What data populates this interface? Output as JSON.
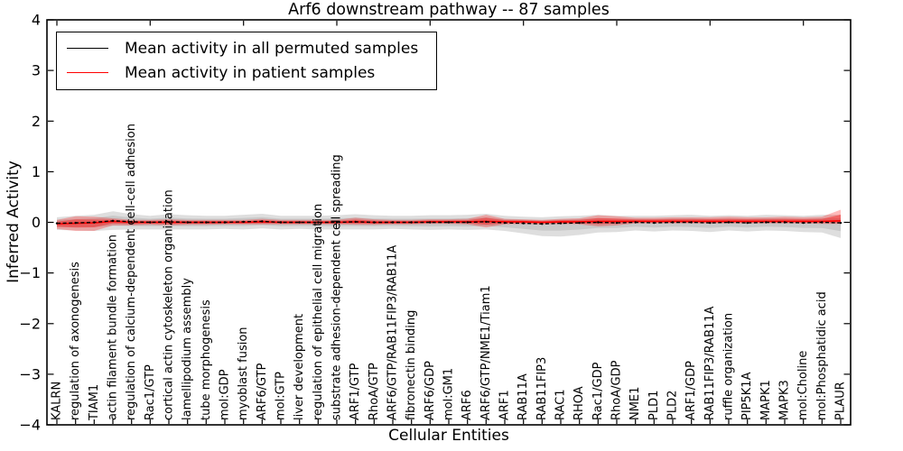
{
  "figure": {
    "title": "Arf6 downstream pathway -- 87 samples",
    "x_axis_label": "Cellular Entities",
    "y_axis_label": "Inferred Activity"
  },
  "legend": {
    "entries": [
      {
        "label": "Mean activity in all permuted samples",
        "color": "#000000"
      },
      {
        "label": "Mean activity in patient samples",
        "color": "#ff0000"
      }
    ]
  },
  "chart_data": {
    "type": "line",
    "title": "Arf6 downstream pathway -- 87 samples",
    "xlabel": "Cellular Entities",
    "ylabel": "Inferred Activity",
    "ylim": [
      -4,
      4
    ],
    "y_ticks": [
      "4",
      "3",
      "2",
      "1",
      "0",
      "−1",
      "−2",
      "−3",
      "−4"
    ],
    "y_tick_values": [
      4,
      3,
      2,
      1,
      0,
      -1,
      -2,
      -3,
      -4
    ],
    "grid": false,
    "legend_position": "upper-left",
    "categories": [
      "KALRN",
      "regulation of axonogenesis",
      "TIAM1",
      "actin filament bundle formation",
      "regulation of calcium-dependent cell-cell adhesion",
      "Rac1/GTP",
      "cortical actin cytoskeleton organization",
      "lamellipodium assembly",
      "tube morphogenesis",
      "mol:GDP",
      "myoblast fusion",
      "ARF6/GTP",
      "mol:GTP",
      "liver development",
      "regulation of epithelial cell migration",
      "substrate adhesion-dependent cell spreading",
      "ARF1/GTP",
      "RhoA/GTP",
      "ARF6/GTP/RAB11FIP3/RAB11A",
      "fibronectin binding",
      "ARF6/GDP",
      "mol:GM1",
      "ARF6",
      "ARF6/GTP/NME1/Tiam1",
      "ARF1",
      "RAB11A",
      "RAB11FIP3",
      "RAC1",
      "RHOA",
      "Rac1/GDP",
      "RhoA/GDP",
      "NME1",
      "PLD1",
      "PLD2",
      "ARF1/GDP",
      "RAB11FIP3/RAB11A",
      "ruffle organization",
      "PIP5K1A",
      "MAPK1",
      "MAPK3",
      "mol:Choline",
      "mol:Phosphatidic acid",
      "PLAUR"
    ],
    "series": [
      {
        "name": "Mean activity in all permuted samples",
        "type": "line-with-band",
        "line_style": "dashed",
        "color": "#000000",
        "band_color": "#999999",
        "values": [
          -0.02,
          -0.01,
          0,
          0.03,
          0.01,
          0,
          0.01,
          0,
          0,
          0,
          0.01,
          0.02,
          0,
          0,
          0,
          0,
          0.01,
          0,
          0,
          0,
          0,
          0,
          0,
          0.01,
          -0.01,
          -0.02,
          -0.03,
          -0.02,
          -0.01,
          0,
          -0.01,
          0,
          -0.01,
          0,
          0,
          -0.01,
          0,
          -0.01,
          0,
          0,
          -0.01,
          0,
          -0.01
        ],
        "band_upper": [
          0.1,
          0.13,
          0.15,
          0.22,
          0.16,
          0.13,
          0.16,
          0.14,
          0.13,
          0.13,
          0.15,
          0.17,
          0.13,
          0.13,
          0.13,
          0.14,
          0.16,
          0.14,
          0.13,
          0.13,
          0.14,
          0.14,
          0.15,
          0.17,
          0.13,
          0.11,
          0.1,
          0.12,
          0.13,
          0.15,
          0.13,
          0.13,
          0.13,
          0.14,
          0.15,
          0.13,
          0.14,
          0.13,
          0.15,
          0.14,
          0.13,
          0.15,
          0.15
        ],
        "band_lower": [
          -0.15,
          -0.16,
          -0.17,
          -0.15,
          -0.14,
          -0.14,
          -0.14,
          -0.14,
          -0.14,
          -0.13,
          -0.14,
          -0.12,
          -0.14,
          -0.13,
          -0.14,
          -0.14,
          -0.14,
          -0.14,
          -0.13,
          -0.14,
          -0.15,
          -0.14,
          -0.15,
          -0.14,
          -0.17,
          -0.22,
          -0.27,
          -0.28,
          -0.25,
          -0.2,
          -0.19,
          -0.16,
          -0.18,
          -0.16,
          -0.17,
          -0.19,
          -0.16,
          -0.18,
          -0.16,
          -0.17,
          -0.19,
          -0.2,
          -0.31
        ]
      },
      {
        "name": "Mean activity in patient samples",
        "type": "line-with-band",
        "line_style": "solid",
        "color": "#ff0000",
        "band_color": "#ff0000",
        "values": [
          -0.03,
          -0.02,
          -0.01,
          0.02,
          0,
          0,
          0,
          0,
          0,
          0,
          0,
          0.01,
          0,
          0,
          0,
          0,
          0.01,
          0,
          0,
          0,
          0.01,
          0.01,
          0.01,
          0.02,
          0.01,
          0.01,
          0,
          0.01,
          0.01,
          0.02,
          0.02,
          0.02,
          0.02,
          0.02,
          0.02,
          0.02,
          0.02,
          0.02,
          0.02,
          0.02,
          0.02,
          0.02,
          0.03
        ],
        "band_upper": [
          0.05,
          0.12,
          0.11,
          0.08,
          0.05,
          0.05,
          0.06,
          0.05,
          0.05,
          0.05,
          0.05,
          0.07,
          0.05,
          0.05,
          0.05,
          0.05,
          0.09,
          0.06,
          0.05,
          0.05,
          0.06,
          0.06,
          0.07,
          0.15,
          0.07,
          0.06,
          0.05,
          0.07,
          0.08,
          0.14,
          0.12,
          0.09,
          0.09,
          0.1,
          0.1,
          0.1,
          0.11,
          0.1,
          0.1,
          0.11,
          0.1,
          0.11,
          0.25
        ],
        "band_lower": [
          -0.13,
          -0.17,
          -0.17,
          -0.06,
          -0.06,
          -0.05,
          -0.06,
          -0.05,
          -0.05,
          -0.04,
          -0.04,
          -0.04,
          -0.04,
          -0.04,
          -0.04,
          -0.04,
          -0.05,
          -0.05,
          -0.04,
          -0.04,
          -0.03,
          -0.03,
          -0.04,
          -0.1,
          -0.04,
          -0.03,
          -0.04,
          -0.03,
          -0.04,
          -0.08,
          -0.06,
          -0.02,
          -0.02,
          -0.02,
          -0.02,
          -0.02,
          -0.02,
          -0.02,
          -0.02,
          -0.02,
          -0.02,
          -0.03,
          -0.03
        ]
      }
    ]
  }
}
